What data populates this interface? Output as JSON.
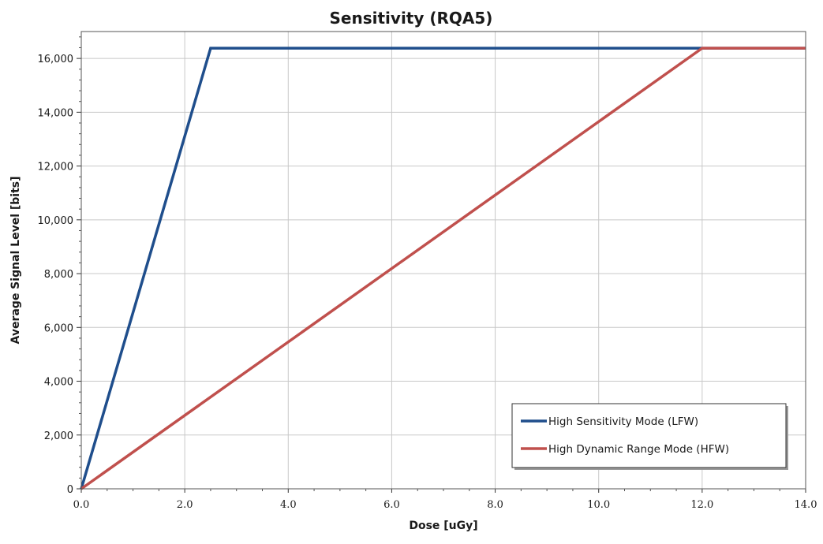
{
  "chart_data": {
    "type": "line",
    "title": "Sensitivity (RQA5)",
    "xlabel": "Dose [uGy]",
    "ylabel": "Average Signal Level [bits]",
    "xlim": [
      0,
      14
    ],
    "ylim": [
      0,
      17000
    ],
    "x_ticks": [
      0,
      2,
      4,
      6,
      8,
      10,
      12,
      14
    ],
    "x_tick_labels": [
      "0.0",
      "2.0",
      "4.0",
      "6.0",
      "8.0",
      "10.0",
      "12.0",
      "14.0"
    ],
    "y_ticks": [
      0,
      2000,
      4000,
      6000,
      8000,
      10000,
      12000,
      14000,
      16000
    ],
    "y_tick_labels": [
      "0",
      "2,000",
      "4,000",
      "6,000",
      "8,000",
      "10,000",
      "12,000",
      "14,000",
      "16,000"
    ],
    "grid": true,
    "legend_position": "bottom-right",
    "series": [
      {
        "name": "High Sensitivity Mode (LFW)",
        "color": "#1f4e8c",
        "x": [
          0,
          2.5,
          14
        ],
        "y": [
          0,
          16383,
          16383
        ]
      },
      {
        "name": "High Dynamic Range Mode (HFW)",
        "color": "#c0504d",
        "x": [
          0,
          12,
          14
        ],
        "y": [
          0,
          16383,
          16383
        ]
      }
    ]
  }
}
